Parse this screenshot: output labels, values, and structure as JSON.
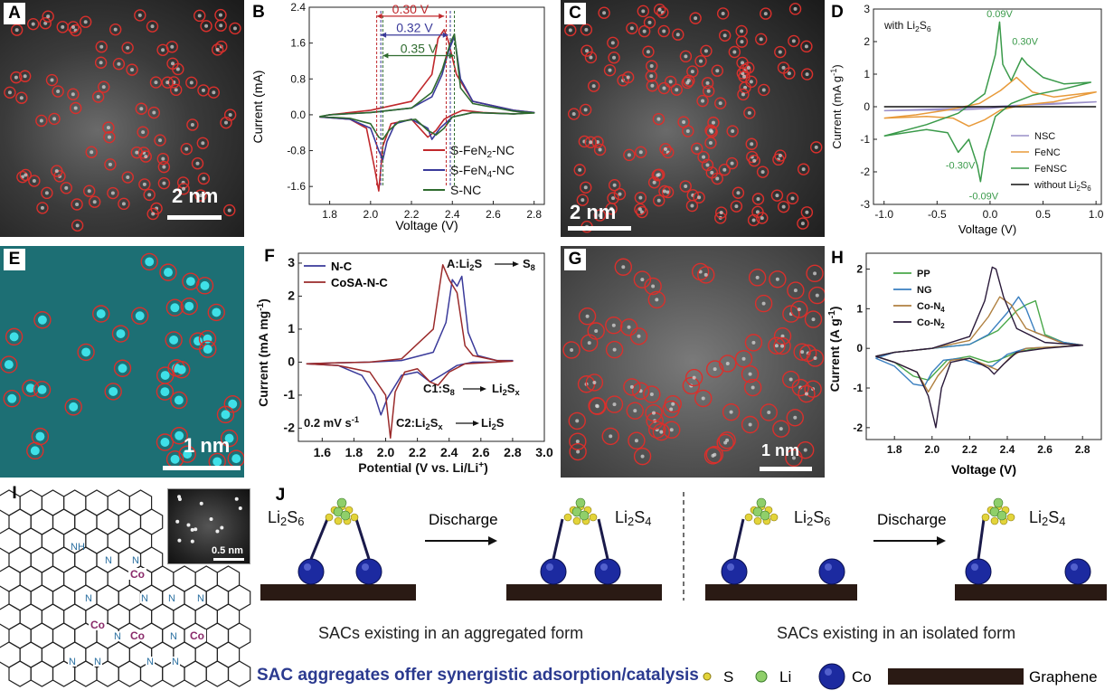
{
  "panels": {
    "A": {
      "letter": "A",
      "scale": "2 nm"
    },
    "C": {
      "letter": "C",
      "scale": "2 nm"
    },
    "E": {
      "letter": "E",
      "scale": "1 nm"
    },
    "G": {
      "letter": "G",
      "scale": "1 nm"
    },
    "I": {
      "letter": "I",
      "inset_scale": "0.5 nm",
      "labels": {
        "nh": "NH",
        "n": "N",
        "co": "Co"
      }
    },
    "J": {
      "letter": "J",
      "left_caption": "SACs existing in an aggregated form",
      "right_caption": "SACs existing in an isolated form",
      "banner": "SAC aggregates offer synergistic adsorption/catalysis",
      "discharge": "Discharge",
      "from_species": {
        "base": "Li",
        "sub1": "2",
        "mid": "S",
        "sub2": "6"
      },
      "to_species": {
        "base": "Li",
        "sub1": "2",
        "mid": "S",
        "sub2": "4"
      },
      "legend": {
        "s": "S",
        "li": "Li",
        "co": "Co",
        "graphene": "Graphene"
      },
      "colors": {
        "s": "#e3d43a",
        "li": "#8fcf6a",
        "co": "#1c2aa0",
        "graphene": "#2a1a14",
        "banner": "#2b3a8f"
      }
    }
  },
  "chart_data": [
    {
      "panel": "B",
      "type": "line",
      "xlabel": "Voltage (V)",
      "ylabel": "Current (mA)",
      "xlim": [
        1.7,
        2.85
      ],
      "ylim": [
        -2.0,
        2.4
      ],
      "xticks": [
        1.8,
        2.0,
        2.2,
        2.4,
        2.6,
        2.8
      ],
      "yticks": [
        -1.6,
        -0.8,
        0.0,
        0.8,
        1.6,
        2.4
      ],
      "legend_placement": "lower-right",
      "annotations": [
        "0.30 V",
        "0.32 V",
        "0.35 V"
      ],
      "series": [
        {
          "name": "S-FeN2-NC",
          "label": {
            "a": "S-FeN",
            "sub": "2",
            "b": "-NC"
          },
          "color": "#c0282c",
          "x": [
            1.75,
            1.9,
            1.98,
            2.02,
            2.04,
            2.06,
            2.1,
            2.2,
            2.28,
            2.32,
            2.36,
            2.4,
            2.45,
            2.55,
            2.7,
            2.8,
            2.7,
            2.5,
            2.42,
            2.38,
            2.36,
            2.33,
            2.3,
            2.2,
            2.0,
            1.8,
            1.75
          ],
          "y": [
            -0.05,
            -0.1,
            -0.3,
            -1.2,
            -1.7,
            -0.7,
            -0.2,
            -0.1,
            -0.5,
            -0.35,
            -0.1,
            0.0,
            0.1,
            0.05,
            0.02,
            0.05,
            0.1,
            0.3,
            0.9,
            1.65,
            1.9,
            1.7,
            0.9,
            0.3,
            0.1,
            0.0,
            -0.05
          ]
        },
        {
          "name": "S-FeN4-NC",
          "label": {
            "a": "S-FeN",
            "sub": "4",
            "b": "-NC"
          },
          "color": "#3a3a9a",
          "x": [
            1.75,
            1.9,
            2.0,
            2.04,
            2.06,
            2.08,
            2.12,
            2.2,
            2.28,
            2.3,
            2.34,
            2.4,
            2.5,
            2.7,
            2.8,
            2.7,
            2.5,
            2.44,
            2.41,
            2.38,
            2.35,
            2.3,
            2.2,
            2.0,
            1.8,
            1.75
          ],
          "y": [
            -0.05,
            -0.1,
            -0.3,
            -0.8,
            -1.0,
            -0.6,
            -0.2,
            -0.1,
            -0.3,
            -0.55,
            -0.3,
            -0.05,
            0.05,
            0.02,
            0.05,
            0.1,
            0.3,
            0.8,
            1.75,
            1.4,
            0.9,
            0.4,
            0.15,
            0.05,
            0.0,
            -0.05
          ]
        },
        {
          "name": "S-NC",
          "label": {
            "a": "S-NC",
            "sub": "",
            "b": ""
          },
          "color": "#2f6b2f",
          "x": [
            1.75,
            1.9,
            2.0,
            2.04,
            2.06,
            2.09,
            2.14,
            2.22,
            2.28,
            2.32,
            2.36,
            2.4,
            2.5,
            2.7,
            2.8,
            2.7,
            2.5,
            2.44,
            2.41,
            2.39,
            2.35,
            2.3,
            2.2,
            2.0,
            1.8,
            1.75
          ],
          "y": [
            -0.04,
            -0.08,
            -0.2,
            -0.5,
            -0.55,
            -0.35,
            -0.15,
            -0.1,
            -0.35,
            -0.45,
            -0.3,
            -0.05,
            0.05,
            0.02,
            0.04,
            0.08,
            0.25,
            0.6,
            1.8,
            1.6,
            1.0,
            0.5,
            0.15,
            0.05,
            0.0,
            -0.04
          ]
        }
      ]
    },
    {
      "panel": "D",
      "type": "line",
      "xlabel": "Voltage (V)",
      "ylabel": {
        "a": "Current (mA g",
        "sup": "-1",
        "b": ")"
      },
      "xlim": [
        -1.1,
        1.05
      ],
      "ylim": [
        -3.0,
        3.0
      ],
      "xticks": [
        -1.0,
        -0.5,
        0.0,
        0.5,
        1.0
      ],
      "yticks": [
        -3,
        -2,
        -1,
        0,
        1,
        2,
        3
      ],
      "annotations": [
        "0.09V",
        "0.30V",
        "-0.30V",
        "-0.09V"
      ],
      "condition": {
        "a": "with Li",
        "sub": "2",
        "b": "S",
        "sub2": "6"
      },
      "legend_placement": "lower-right",
      "series": [
        {
          "name": "NSC",
          "label": {
            "a": "NSC",
            "sub": "",
            "b": ""
          },
          "color": "#9a8fc8",
          "x": [
            -1.0,
            -0.6,
            -0.3,
            0.0,
            0.3,
            0.6,
            1.0,
            0.6,
            0.3,
            0.0,
            -0.3,
            -0.6,
            -1.0
          ],
          "y": [
            -0.12,
            -0.1,
            -0.1,
            -0.05,
            0.05,
            0.08,
            0.15,
            0.1,
            0.05,
            0.0,
            -0.05,
            -0.08,
            -0.12
          ]
        },
        {
          "name": "FeNC",
          "label": {
            "a": "FeNC",
            "sub": "",
            "b": ""
          },
          "color": "#e89a3a",
          "x": [
            -1.0,
            -0.6,
            -0.35,
            -0.2,
            -0.05,
            0.1,
            0.3,
            0.6,
            1.0,
            0.6,
            0.4,
            0.25,
            0.1,
            -0.1,
            -0.4,
            -0.7,
            -1.0
          ],
          "y": [
            -0.35,
            -0.3,
            -0.35,
            -0.6,
            -0.4,
            -0.1,
            0.05,
            0.15,
            0.45,
            0.3,
            0.45,
            0.9,
            0.5,
            0.1,
            -0.1,
            -0.25,
            -0.35
          ]
        },
        {
          "name": "FeNSC",
          "label": {
            "a": "FeNSC",
            "sub": "",
            "b": ""
          },
          "color": "#3a9a4a",
          "x": [
            -1.0,
            -0.6,
            -0.4,
            -0.3,
            -0.2,
            -0.12,
            -0.09,
            -0.05,
            0.05,
            0.2,
            0.4,
            0.7,
            0.95,
            0.7,
            0.5,
            0.35,
            0.3,
            0.2,
            0.12,
            0.09,
            0.05,
            -0.05,
            -0.3,
            -0.6,
            -1.0
          ],
          "y": [
            -0.9,
            -0.7,
            -0.8,
            -1.4,
            -1.0,
            -1.8,
            -2.3,
            -1.4,
            -0.3,
            0.1,
            0.35,
            0.55,
            0.75,
            0.7,
            0.9,
            1.3,
            1.5,
            0.8,
            1.3,
            2.6,
            1.6,
            0.4,
            -0.2,
            -0.55,
            -0.9
          ]
        },
        {
          "name": "without Li2S6",
          "label": {
            "a": "without Li",
            "sub": "2",
            "b": "S",
            "sub2": "6"
          },
          "color": "#111111",
          "x": [
            -1.0,
            1.0
          ],
          "y": [
            0.0,
            0.0
          ]
        }
      ]
    },
    {
      "panel": "F",
      "type": "line",
      "xlabel": {
        "a": "Potential (V vs. Li/Li",
        "sup": "+",
        "b": ")"
      },
      "ylabel": {
        "a": "Current (mA mg",
        "sup": "-1",
        "b": ")"
      },
      "xlim": [
        1.45,
        3.0
      ],
      "ylim": [
        -2.4,
        3.3
      ],
      "xticks": [
        1.6,
        1.8,
        2.0,
        2.2,
        2.4,
        2.6,
        2.8,
        3.0
      ],
      "yticks": [
        -2,
        -1,
        0,
        1,
        2,
        3
      ],
      "legend_placement": "top-left",
      "scan_rate": {
        "a": "0.2 mV s",
        "sup": "-1"
      },
      "annotations": {
        "A": {
          "a": "A:Li",
          "sub": "2",
          "b": "S",
          "arrow": "S",
          "sub2": "8"
        },
        "C1": {
          "a": "C1:S",
          "sub": "8",
          "arrow": "Li",
          "sub2": "2",
          "b": "S",
          "sub3": "x"
        },
        "C2": {
          "a": "C2:Li",
          "sub": "2",
          "b": "S",
          "sub2": "x",
          "arrow": "Li",
          "sub3": "2",
          "c": "S"
        }
      },
      "series": [
        {
          "name": "N-C",
          "color": "#3a3a9a",
          "x": [
            1.5,
            1.7,
            1.85,
            1.93,
            1.97,
            2.01,
            2.1,
            2.2,
            2.28,
            2.35,
            2.45,
            2.55,
            2.7,
            2.8,
            2.7,
            2.58,
            2.52,
            2.48,
            2.45,
            2.42,
            2.38,
            2.3,
            2.1,
            1.9,
            1.7,
            1.5
          ],
          "y": [
            -0.05,
            -0.1,
            -0.4,
            -1.0,
            -1.6,
            -1.1,
            -0.4,
            -0.3,
            -0.6,
            -0.4,
            -0.1,
            0.0,
            0.0,
            0.05,
            0.05,
            0.2,
            0.9,
            2.6,
            2.3,
            2.5,
            1.2,
            0.3,
            0.05,
            0.0,
            -0.02,
            -0.05
          ]
        },
        {
          "name": "CoSA-N-C",
          "color": "#9a2a2a",
          "x": [
            1.5,
            1.7,
            1.9,
            2.0,
            2.03,
            2.06,
            2.12,
            2.2,
            2.28,
            2.33,
            2.4,
            2.5,
            2.7,
            2.8,
            2.7,
            2.55,
            2.5,
            2.45,
            2.4,
            2.36,
            2.3,
            2.1,
            1.9,
            1.7,
            1.5
          ],
          "y": [
            -0.05,
            -0.1,
            -0.3,
            -1.0,
            -2.3,
            -0.9,
            -0.3,
            -0.2,
            -0.6,
            -0.7,
            -0.3,
            -0.05,
            0.0,
            0.03,
            0.05,
            0.2,
            0.5,
            2.1,
            2.5,
            2.95,
            1.0,
            0.1,
            0.0,
            -0.02,
            -0.05
          ]
        }
      ]
    },
    {
      "panel": "H",
      "type": "line",
      "xlabel": "Voltage (V)",
      "ylabel": {
        "a": "Current (A g",
        "sup": "-1",
        "b": ")"
      },
      "xlim": [
        1.65,
        2.9
      ],
      "ylim": [
        -2.3,
        2.4
      ],
      "xticks": [
        1.8,
        2.0,
        2.2,
        2.4,
        2.6,
        2.8
      ],
      "yticks": [
        -2,
        -1,
        0,
        1,
        2
      ],
      "legend_placement": "top-left",
      "series": [
        {
          "name": "PP",
          "label": {
            "a": "PP",
            "sub": "",
            "b": ""
          },
          "color": "#4aa84a",
          "x": [
            1.7,
            1.8,
            1.9,
            1.98,
            2.02,
            2.08,
            2.2,
            2.3,
            2.35,
            2.45,
            2.55,
            2.6,
            2.7,
            2.8,
            2.7,
            2.6,
            2.55,
            2.5,
            2.45,
            2.35,
            2.2,
            2.0,
            1.8,
            1.7
          ],
          "y": [
            -0.2,
            -0.35,
            -0.7,
            -0.8,
            -0.6,
            -0.3,
            -0.2,
            -0.35,
            -0.3,
            -0.1,
            0.0,
            0.02,
            0.05,
            0.08,
            0.15,
            0.35,
            1.2,
            1.1,
            0.95,
            0.45,
            0.1,
            0.0,
            -0.1,
            -0.2
          ]
        },
        {
          "name": "NG",
          "label": {
            "a": "NG",
            "sub": "",
            "b": ""
          },
          "color": "#3a7fc0",
          "x": [
            1.7,
            1.8,
            1.9,
            1.96,
            2.0,
            2.06,
            2.15,
            2.25,
            2.32,
            2.4,
            2.5,
            2.7,
            2.8,
            2.7,
            2.55,
            2.5,
            2.46,
            2.4,
            2.3,
            2.2,
            2.0,
            1.8,
            1.7
          ],
          "y": [
            -0.25,
            -0.45,
            -0.9,
            -0.95,
            -0.6,
            -0.3,
            -0.25,
            -0.4,
            -0.45,
            -0.15,
            0.0,
            0.05,
            0.08,
            0.15,
            0.4,
            1.0,
            1.3,
            0.9,
            0.35,
            0.1,
            0.0,
            -0.1,
            -0.25
          ]
        },
        {
          "name": "Co-N4",
          "label": {
            "a": "Co-N",
            "sub": "4",
            "b": ""
          },
          "color": "#b08040",
          "x": [
            1.7,
            1.8,
            1.92,
            1.98,
            2.03,
            2.1,
            2.2,
            2.3,
            2.35,
            2.42,
            2.5,
            2.7,
            2.8,
            2.7,
            2.5,
            2.42,
            2.36,
            2.3,
            2.2,
            2.0,
            1.8,
            1.7
          ],
          "y": [
            -0.2,
            -0.35,
            -0.6,
            -1.1,
            -0.7,
            -0.3,
            -0.25,
            -0.45,
            -0.55,
            -0.2,
            0.0,
            0.05,
            0.08,
            0.12,
            0.5,
            1.1,
            1.3,
            0.8,
            0.2,
            0.0,
            -0.1,
            -0.2
          ]
        },
        {
          "name": "Co-N2",
          "label": {
            "a": "Co-N",
            "sub": "2",
            "b": ""
          },
          "color": "#2a1a3a",
          "x": [
            1.7,
            1.8,
            1.92,
            1.98,
            2.02,
            2.05,
            2.1,
            2.2,
            2.3,
            2.33,
            2.38,
            2.45,
            2.6,
            2.8,
            2.6,
            2.45,
            2.38,
            2.34,
            2.32,
            2.28,
            2.2,
            2.0,
            1.8,
            1.7
          ],
          "y": [
            -0.2,
            -0.35,
            -0.6,
            -1.2,
            -2.0,
            -1.0,
            -0.35,
            -0.25,
            -0.5,
            -0.65,
            -0.4,
            -0.1,
            0.0,
            0.08,
            0.15,
            0.5,
            1.3,
            2.0,
            2.05,
            1.2,
            0.3,
            0.0,
            -0.1,
            -0.2
          ]
        }
      ]
    }
  ]
}
